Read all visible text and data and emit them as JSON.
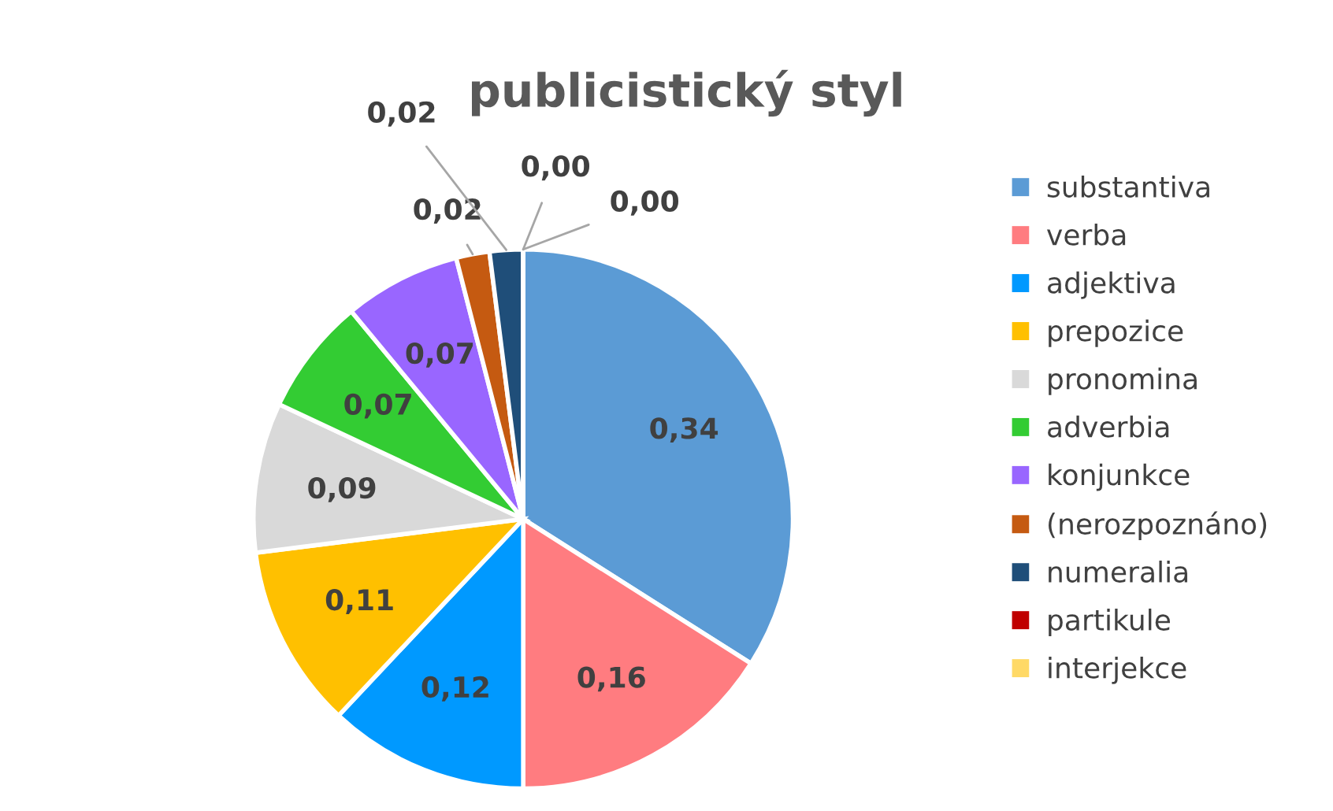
{
  "chart_data": {
    "type": "pie",
    "title": "publicistický styl",
    "categories": [
      "substantiva",
      "verba",
      "adjektiva",
      "prepozice",
      "pronomina",
      "adverbia",
      "konjunkce",
      "(nerozpoznáno)",
      "numeralia",
      "partikule",
      "interjekce"
    ],
    "values": [
      0.34,
      0.16,
      0.12,
      0.11,
      0.09,
      0.07,
      0.07,
      0.02,
      0.02,
      0.0,
      0.0
    ],
    "value_labels": [
      "0,34",
      "0,16",
      "0,12",
      "0,11",
      "0,09",
      "0,07",
      "0,07",
      "0,02",
      "0,02",
      "0,00",
      "0,00"
    ],
    "colors": [
      "#5b9bd5",
      "#ff7c80",
      "#0099ff",
      "#ffc000",
      "#d9d9d9",
      "#33cc33",
      "#9966ff",
      "#c55a11",
      "#1f4e79",
      "#c00000",
      "#ffd966"
    ],
    "legend": "right"
  }
}
